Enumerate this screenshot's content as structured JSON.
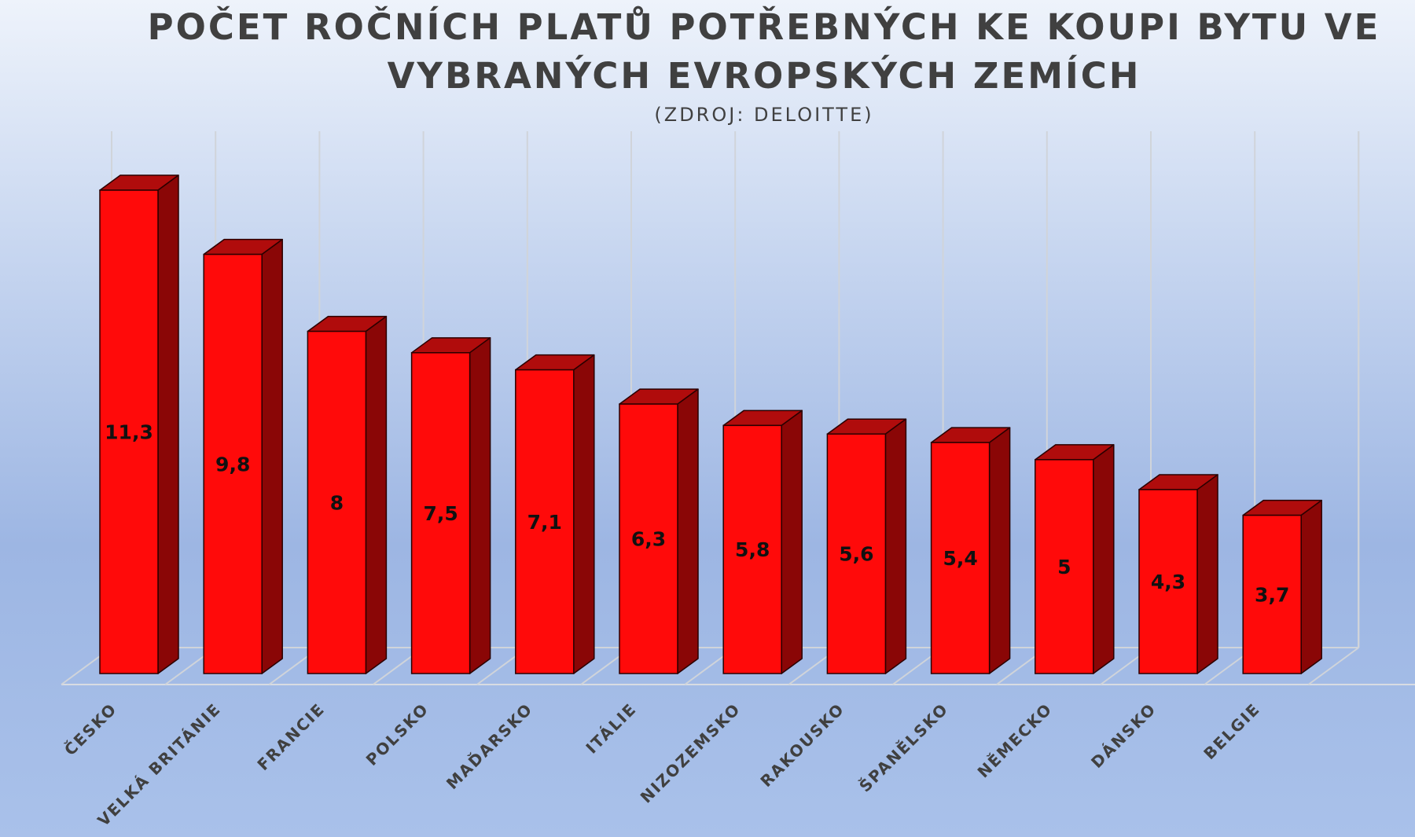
{
  "chart_data": {
    "type": "bar",
    "title_line1": "POČET ROČNÍCH PLATŮ POTŘEBNÝCH KE KOUPI BYTU VE",
    "title_line2": "VYBRANÝCH EVROPSKÝCH ZEMÍCH",
    "subtitle": "(ZDROJ: DELOITTE)",
    "categories": [
      "ČESKO",
      "VELKÁ BRITÁNIE",
      "FRANCIE",
      "POLSKO",
      "MAĎARSKO",
      "ITÁLIE",
      "NIZOZEMSKO",
      "RAKOUSKO",
      "ŠPANĚLSKO",
      "NĚMECKO",
      "DÁNSKO",
      "BELGIE"
    ],
    "values": [
      11.3,
      9.8,
      8,
      7.5,
      7.1,
      6.3,
      5.8,
      5.6,
      5.4,
      5,
      4.3,
      3.7
    ],
    "value_labels": [
      "11,3",
      "9,8",
      "8",
      "7,5",
      "7,1",
      "6,3",
      "5,8",
      "5,6",
      "5,4",
      "5",
      "4,3",
      "3,7"
    ],
    "ylim": [
      0,
      11.3
    ],
    "grid": "vertical",
    "legend": "none",
    "style": "3d-column",
    "colors": {
      "bar_front": "#ff0a0a",
      "bar_top": "#b00c0c",
      "bar_side": "#8a0606",
      "outline": "#2a0000"
    }
  }
}
